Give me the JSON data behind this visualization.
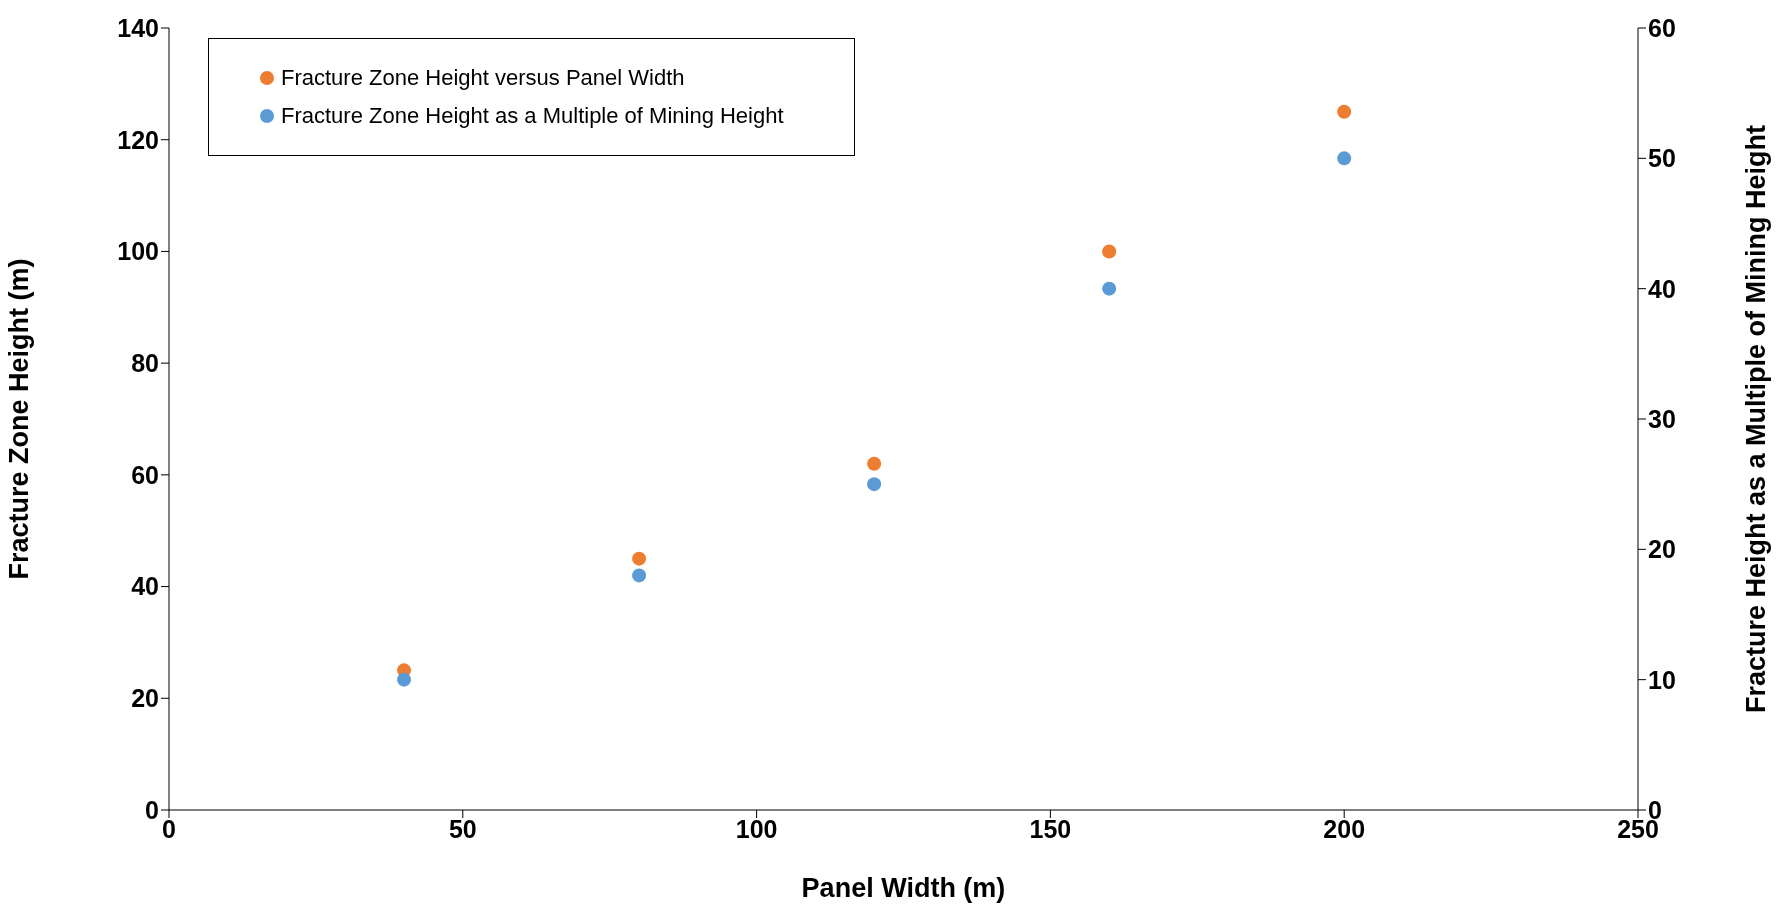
{
  "chart_data": {
    "type": "scatter",
    "xlabel": "Panel Width (m)",
    "ylabel": "Fracture Zone Height (m)",
    "y2label": "Fracture Height as a Multiple of Mining Height",
    "x": [
      40,
      80,
      120,
      160,
      200
    ],
    "series": [
      {
        "name": "Fracture Zone Height versus Panel Width",
        "color": "#ed7d31",
        "values": [
          25,
          45,
          62,
          100,
          125
        ]
      },
      {
        "name": "Fracture Zone Height as a Multiple of Mining Height",
        "color": "#5b9bd5",
        "values": [
          10,
          18,
          25,
          40,
          50
        ],
        "axis": "y2"
      }
    ],
    "xlim": [
      0,
      250
    ],
    "xticks": [
      0,
      50,
      100,
      150,
      200,
      250
    ],
    "ylim": [
      0,
      140
    ],
    "yticks": [
      0,
      20,
      40,
      60,
      80,
      100,
      120,
      140
    ],
    "y2lim": [
      0,
      60
    ],
    "y2ticks": [
      0,
      10,
      20,
      30,
      40,
      50,
      60
    ],
    "grid": false,
    "legend": "top left",
    "marker": "circle"
  }
}
